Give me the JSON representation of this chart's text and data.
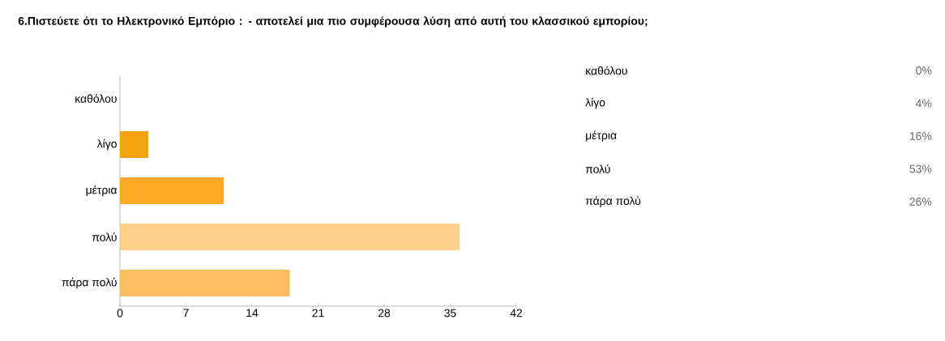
{
  "chart_data": {
    "type": "bar",
    "orientation": "horizontal",
    "title": "6.Πιστεύετε ότι το Ηλεκτρονικό Εμπόριο : - αποτελεί μια πιο συμφέρουσα λύση από αυτή του κλασσικού εμπορίου;",
    "categories": [
      "καθόλου",
      "λίγο",
      "μέτρια",
      "πολύ",
      "πάρα πολύ"
    ],
    "values": [
      0,
      3,
      11,
      36,
      18
    ],
    "colors": [
      "#f39c12",
      "#f5a00f",
      "#ffa726",
      "#ffd08a",
      "#fdbc5e"
    ],
    "annotations": [
      "0%",
      "4%",
      "16%",
      "53%",
      "26%"
    ],
    "xlim": [
      0,
      42
    ],
    "xticks": [
      0,
      7,
      14,
      21,
      28,
      35,
      42
    ],
    "grid": false
  }
}
